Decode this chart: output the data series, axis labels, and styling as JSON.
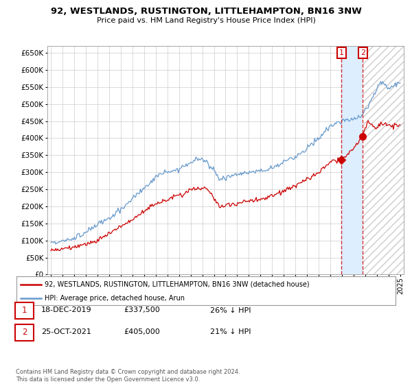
{
  "title": "92, WESTLANDS, RUSTINGTON, LITTLEHAMPTON, BN16 3NW",
  "subtitle": "Price paid vs. HM Land Registry's House Price Index (HPI)",
  "yticks": [
    0,
    50000,
    100000,
    150000,
    200000,
    250000,
    300000,
    350000,
    400000,
    450000,
    500000,
    550000,
    600000,
    650000
  ],
  "ylim": [
    0,
    670000
  ],
  "xlim_left": 1994.7,
  "xlim_right": 2025.3,
  "legend_line1": "92, WESTLANDS, RUSTINGTON, LITTLEHAMPTON, BN16 3NW (detached house)",
  "legend_line2": "HPI: Average price, detached house, Arun",
  "line1_color": "#cc0000",
  "line2_color": "#6699cc",
  "shade_color": "#ddeeff",
  "annotation1_label": "1",
  "annotation1_date": "18-DEC-2019",
  "annotation1_price": "£337,500",
  "annotation1_text": "26% ↓ HPI",
  "annotation2_label": "2",
  "annotation2_date": "25-OCT-2021",
  "annotation2_price": "£405,000",
  "annotation2_text": "21% ↓ HPI",
  "footer": "Contains HM Land Registry data © Crown copyright and database right 2024.\nThis data is licensed under the Open Government Licence v3.0.",
  "background_color": "#ffffff",
  "grid_color": "#cccccc",
  "trans1_x": 2019.96,
  "trans1_y": 337500,
  "trans2_x": 2021.79,
  "trans2_y": 405000
}
